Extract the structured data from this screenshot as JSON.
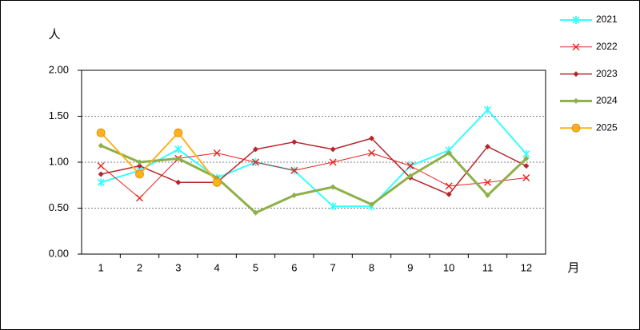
{
  "chart_data": {
    "type": "line",
    "y_label": "人",
    "x_label": "月",
    "categories": [
      "1",
      "2",
      "3",
      "4",
      "5",
      "6",
      "7",
      "8",
      "9",
      "10",
      "11",
      "12"
    ],
    "series": [
      {
        "name": "2021",
        "color": "#33ffff",
        "marker": "star",
        "line_width": 2,
        "values": [
          0.78,
          0.91,
          1.14,
          0.83,
          1.0,
          0.91,
          0.52,
          0.52,
          0.96,
          1.13,
          1.57,
          1.09
        ]
      },
      {
        "name": "2022",
        "color": "#e8231f",
        "marker": "x",
        "line_width": 1,
        "values": [
          0.96,
          0.61,
          1.04,
          1.1,
          1.0,
          0.91,
          1.0,
          1.1,
          0.96,
          0.74,
          0.78,
          0.83
        ]
      },
      {
        "name": "2023",
        "color": "#b5262b",
        "marker": "diamond",
        "line_width": 1.5,
        "values": [
          0.87,
          0.96,
          0.78,
          0.78,
          1.14,
          1.22,
          1.14,
          1.26,
          0.83,
          0.65,
          1.17,
          0.96
        ]
      },
      {
        "name": "2024",
        "color": "#8db04a",
        "marker": "diamond",
        "line_width": 3,
        "values": [
          1.18,
          1.0,
          1.04,
          0.83,
          0.45,
          0.64,
          0.73,
          0.54,
          0.85,
          1.1,
          0.64,
          1.04
        ]
      },
      {
        "name": "2025",
        "color": "#ffb21a",
        "marker": "circle",
        "line_width": 2,
        "values": [
          1.32,
          0.87,
          1.32,
          0.78,
          null,
          null,
          null,
          null,
          null,
          null,
          null,
          null
        ]
      }
    ],
    "ylim": [
      0,
      2
    ],
    "yticks": [
      {
        "value": 0,
        "label": "0.00"
      },
      {
        "value": 0.5,
        "label": "0.50"
      },
      {
        "value": 1,
        "label": "1.00"
      },
      {
        "value": 1.5,
        "label": "1.50"
      },
      {
        "value": 2,
        "label": "2.00"
      }
    ],
    "grid": true,
    "legend": "right"
  }
}
